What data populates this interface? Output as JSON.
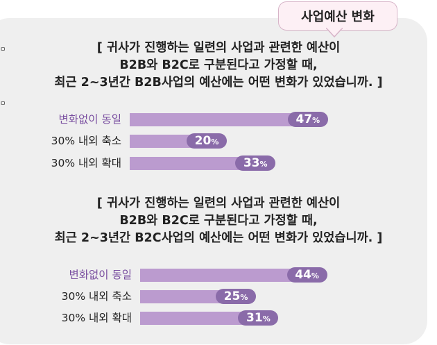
{
  "header": {
    "tab_label": "사업예산 변화"
  },
  "edge_marks": [
    "ㅁ",
    "ㅁ"
  ],
  "colors": {
    "panel_background": "#efefef",
    "tab_background": "#fdf0f5",
    "bar": "#bb9bcf",
    "value_pill": "#8a6ba9",
    "highlight_category": "#7a4fa0"
  },
  "chart_data": [
    {
      "type": "bar",
      "orientation": "horizontal",
      "title_lines": [
        "[ 귀사가 진행하는 일련의 사업과 관련한 예산이",
        "B2B와 B2C로 구분된다고 가정할 때,",
        "최근 2~3년간 B2B사업의 예산에는 어떤 변화가 있었습니까. ]"
      ],
      "categories": [
        "변화없이 동일",
        "30% 내외 축소",
        "30% 내외 확대"
      ],
      "values": [
        47,
        20,
        33
      ],
      "value_labels": [
        "47",
        "20",
        "33"
      ],
      "unit": "%",
      "xlim": [
        0,
        100
      ],
      "grid": false,
      "legend": "none"
    },
    {
      "type": "bar",
      "orientation": "horizontal",
      "title_lines": [
        "[ 귀사가 진행하는 일련의 사업과 관련한 예산이",
        "B2B와 B2C로 구분된다고 가정할 때,",
        "최근 2~3년간 B2C사업의 예산에는 어떤 변화가 있었습니까. ]"
      ],
      "categories": [
        "변화없이 동일",
        "30% 내외 축소",
        "30% 내외 확대"
      ],
      "values": [
        44,
        25,
        31
      ],
      "value_labels": [
        "44",
        "25",
        "31"
      ],
      "unit": "%",
      "xlim": [
        0,
        100
      ],
      "grid": false,
      "legend": "none"
    }
  ]
}
